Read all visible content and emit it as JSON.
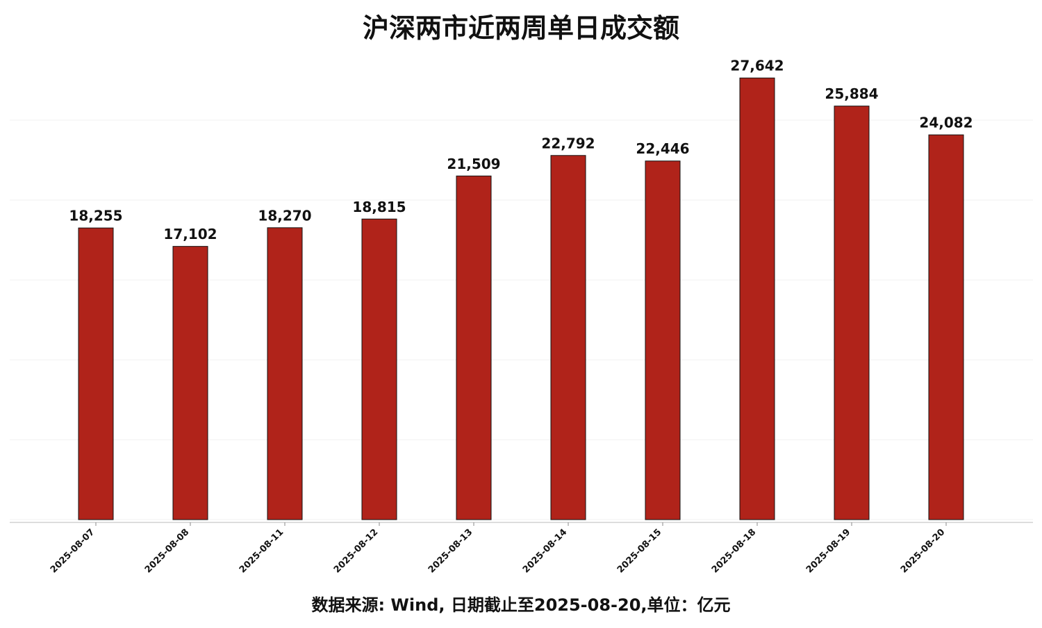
{
  "chart_data": {
    "type": "bar",
    "title": "沪深两市近两周单日成交额",
    "categories": [
      "2025-08-07",
      "2025-08-08",
      "2025-08-11",
      "2025-08-12",
      "2025-08-13",
      "2025-08-14",
      "2025-08-15",
      "2025-08-18",
      "2025-08-19",
      "2025-08-20"
    ],
    "values": [
      18255,
      17102,
      18270,
      18815,
      21509,
      22792,
      22446,
      27642,
      25884,
      24082
    ],
    "value_labels": [
      "18,255",
      "17,102",
      "18,270",
      "18,815",
      "21,509",
      "22,792",
      "22,446",
      "27,642",
      "25,884",
      "24,082"
    ],
    "color": "#b0231a",
    "ylim": [
      0,
      30000
    ],
    "yticks": [
      0,
      5000,
      10000,
      15000,
      20000,
      25000
    ],
    "grid": true,
    "source": "数据来源: Wind, 日期截止至2025-08-20,单位：亿元"
  }
}
